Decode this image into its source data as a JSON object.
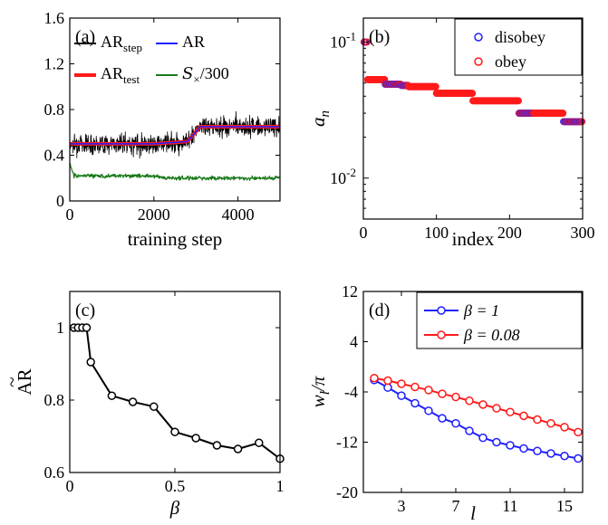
{
  "colors": {
    "black": "#000000",
    "blue": "#1f1fff",
    "red": "#ff1a1a",
    "green": "#1a7a1a"
  },
  "chart_data": [
    {
      "id": "a",
      "type": "line",
      "panel_label": "(a)",
      "xlabel": "training step",
      "ylabel": "",
      "xlim": [
        0,
        5000
      ],
      "ylim": [
        0,
        1.6
      ],
      "xticks": [
        "0",
        "2000",
        "4000"
      ],
      "xtick_values": [
        0,
        2000,
        4000
      ],
      "yticks": [
        "0",
        "0.4",
        "0.8",
        "1.2",
        "1.6"
      ],
      "ytick_values": [
        0,
        0.4,
        0.8,
        1.2,
        1.6
      ],
      "legend_placement": "top",
      "legend": [
        {
          "base": "AR",
          "sub": "step",
          "suffix": "",
          "color": "#000000"
        },
        {
          "base": "AR",
          "sub": "",
          "suffix": "",
          "color": "#1f1fff"
        },
        {
          "base": "AR",
          "sub": "test",
          "suffix": "",
          "color": "#ff1a1a"
        },
        {
          "base": "S",
          "sub": "×",
          "suffix": "/300",
          "color": "#1a7a1a"
        }
      ],
      "series": [
        {
          "name": "AR_step",
          "note": "noisy trace",
          "x": [
            0,
            2000,
            2800,
            3100,
            5000
          ],
          "y": [
            0.5,
            0.5,
            0.52,
            0.65,
            0.65
          ],
          "noise": 0.06
        },
        {
          "name": "AR",
          "x": [
            0,
            2000,
            2800,
            3100,
            5000
          ],
          "y": [
            0.5,
            0.5,
            0.52,
            0.65,
            0.65
          ]
        },
        {
          "name": "AR_test",
          "x": [
            0,
            2000,
            2800,
            3100,
            5000
          ],
          "y": [
            0.5,
            0.5,
            0.52,
            0.65,
            0.65
          ]
        },
        {
          "name": "S_x/300",
          "x": [
            0,
            100,
            2000,
            2300,
            5000
          ],
          "y": [
            0.32,
            0.22,
            0.22,
            0.2,
            0.2
          ],
          "noise": 0.012
        }
      ]
    },
    {
      "id": "b",
      "type": "scatter",
      "panel_label": "(b)",
      "xlabel": "index",
      "ylabel": "a_n",
      "xlim": [
        0,
        300
      ],
      "ylim_log": [
        0.005,
        0.15
      ],
      "xticks": [
        "0",
        "100",
        "200",
        "300"
      ],
      "xtick_values": [
        0,
        100,
        200,
        300
      ],
      "yticks_log": [
        0.01,
        0.1
      ],
      "ytick_labels": [
        {
          "base": "10",
          "exp": "-2"
        },
        {
          "base": "10",
          "exp": "-1"
        }
      ],
      "legend_placement": "top-right",
      "legend": [
        {
          "label": "disobey",
          "color": "#1f1fff"
        },
        {
          "label": "obey",
          "color": "#ff1a1a"
        }
      ],
      "segments": [
        {
          "x0": 1,
          "x1": 6,
          "y": 0.1,
          "kind": "mixed"
        },
        {
          "x0": 6,
          "x1": 30,
          "y": 0.053,
          "kind": "obey"
        },
        {
          "x0": 30,
          "x1": 52,
          "y": 0.049,
          "kind": "mixed"
        },
        {
          "x0": 52,
          "x1": 62,
          "y": 0.048,
          "kind": "mixed"
        },
        {
          "x0": 62,
          "x1": 100,
          "y": 0.047,
          "kind": "obey"
        },
        {
          "x0": 100,
          "x1": 150,
          "y": 0.042,
          "kind": "obey"
        },
        {
          "x0": 150,
          "x1": 213,
          "y": 0.037,
          "kind": "obey"
        },
        {
          "x0": 213,
          "x1": 234,
          "y": 0.03,
          "kind": "mixed"
        },
        {
          "x0": 234,
          "x1": 274,
          "y": 0.03,
          "kind": "obey"
        },
        {
          "x0": 274,
          "x1": 300,
          "y": 0.026,
          "kind": "mixed"
        }
      ]
    },
    {
      "id": "c",
      "type": "line",
      "panel_label": "(c)",
      "xlabel": "β",
      "ylabel": "AR~",
      "xlim": [
        0,
        1
      ],
      "ylim": [
        0.6,
        1.1
      ],
      "xticks": [
        "0",
        "0.5",
        "1"
      ],
      "xtick_values": [
        0,
        0.5,
        1
      ],
      "yticks": [
        "0.6",
        "0.8",
        "1"
      ],
      "ytick_values": [
        0.6,
        0.8,
        1
      ],
      "x": [
        0.02,
        0.04,
        0.06,
        0.08,
        0.1,
        0.2,
        0.3,
        0.4,
        0.5,
        0.6,
        0.7,
        0.8,
        0.9,
        1.0
      ],
      "y": [
        1.0,
        1.0,
        1.0,
        1.0,
        0.905,
        0.812,
        0.795,
        0.782,
        0.712,
        0.695,
        0.675,
        0.665,
        0.682,
        0.638
      ],
      "color": "#000000"
    },
    {
      "id": "d",
      "type": "line",
      "panel_label": "(d)",
      "xlabel": "l",
      "ylabel": "w_l/π",
      "xlim": [
        0,
        16
      ],
      "ylim": [
        -20,
        12
      ],
      "xticks": [
        "3",
        "7",
        "11",
        "15"
      ],
      "xtick_values": [
        3,
        7,
        11,
        15
      ],
      "yticks": [
        "-20",
        "-12",
        "-4",
        "4",
        "12"
      ],
      "ytick_values": [
        -20,
        -12,
        -4,
        4,
        12
      ],
      "legend_placement": "top-right",
      "legend": [
        {
          "label": "β = 1",
          "color": "#1f1fff"
        },
        {
          "label": "β = 0.08",
          "color": "#ff1a1a"
        }
      ],
      "series": [
        {
          "name": "β = 1",
          "color": "#1f1fff",
          "x": [
            1,
            2,
            3,
            4,
            5,
            6,
            7,
            8,
            9,
            10,
            11,
            12,
            13,
            14,
            15,
            16
          ],
          "y": [
            -2.1,
            -3.3,
            -4.6,
            -5.8,
            -7.0,
            -8.2,
            -9.0,
            -10.2,
            -11.3,
            -12.0,
            -12.5,
            -13.0,
            -13.4,
            -13.8,
            -14.2,
            -14.6
          ]
        },
        {
          "name": "β = 0.08",
          "color": "#ff1a1a",
          "x": [
            1,
            2,
            3,
            4,
            5,
            6,
            7,
            8,
            9,
            10,
            11,
            12,
            13,
            14,
            15,
            16
          ],
          "y": [
            -1.8,
            -2.2,
            -2.7,
            -3.2,
            -3.7,
            -4.3,
            -4.8,
            -5.4,
            -6.0,
            -6.6,
            -7.2,
            -7.8,
            -8.4,
            -9.0,
            -9.6,
            -10.4
          ]
        }
      ]
    }
  ]
}
